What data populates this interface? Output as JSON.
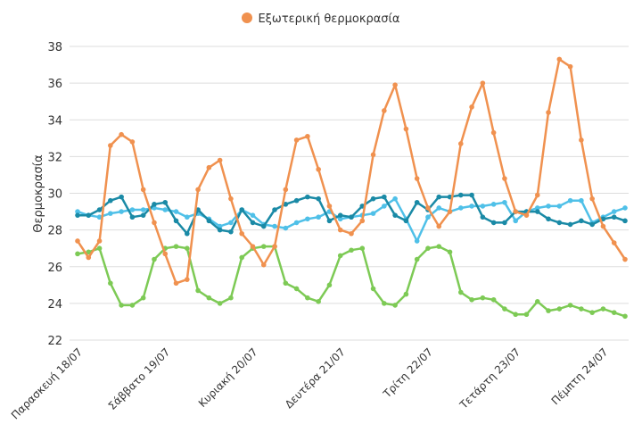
{
  "chart_data": {
    "type": "line",
    "title": "",
    "xlabel": "",
    "ylabel": "Θερμοκρασία",
    "ylim": [
      22,
      38
    ],
    "yticks": [
      22,
      24,
      26,
      28,
      30,
      32,
      34,
      36,
      38
    ],
    "grid": true,
    "legend_placement": "top-center",
    "x_tick_labels": [
      {
        "index": 0,
        "label": "Παρασκευή 18/07"
      },
      {
        "index": 8,
        "label": "Σάββατο 19/07"
      },
      {
        "index": 16,
        "label": "Κυριακή 20/07"
      },
      {
        "index": 24,
        "label": "Δευτέρα 21/07"
      },
      {
        "index": 32,
        "label": "Τρίτη 22/07"
      },
      {
        "index": 40,
        "label": "Τετάρτη 23/07"
      },
      {
        "index": 48,
        "label": "Πέμπτη 24/07"
      }
    ],
    "series": [
      {
        "name": "",
        "color": "#4fc0e8",
        "values": [
          29.0,
          28.8,
          28.7,
          28.9,
          29.0,
          29.1,
          29.1,
          29.2,
          29.1,
          29.0,
          28.7,
          28.9,
          28.6,
          28.2,
          28.4,
          29.1,
          28.8,
          28.3,
          28.2,
          28.1,
          28.4,
          28.6,
          28.7,
          29.0,
          28.6,
          28.7,
          28.8,
          28.9,
          29.3,
          29.7,
          28.6,
          27.4,
          28.7,
          29.2,
          29.0,
          29.2,
          29.3,
          29.3,
          29.4,
          29.5,
          28.5,
          29.0,
          29.2,
          29.3,
          29.3,
          29.6,
          29.6,
          28.4,
          28.7,
          29.0,
          29.2
        ]
      },
      {
        "name": "",
        "color": "#1a8aa6",
        "values": [
          28.8,
          28.8,
          29.1,
          29.6,
          29.8,
          28.7,
          28.8,
          29.4,
          29.5,
          28.5,
          27.8,
          29.1,
          28.5,
          28.0,
          27.9,
          29.1,
          28.4,
          28.2,
          29.1,
          29.4,
          29.6,
          29.8,
          29.7,
          28.5,
          28.8,
          28.7,
          29.3,
          29.7,
          29.8,
          28.8,
          28.5,
          29.5,
          29.1,
          29.8,
          29.8,
          29.9,
          29.9,
          28.7,
          28.4,
          28.4,
          29.0,
          29.0,
          29.0,
          28.6,
          28.4,
          28.3,
          28.5,
          28.3,
          28.6,
          28.7,
          28.5
        ]
      },
      {
        "name": "",
        "color": "#7dca55",
        "values": [
          26.7,
          26.8,
          27.0,
          25.1,
          23.9,
          23.9,
          24.3,
          26.4,
          27.0,
          27.1,
          27.0,
          24.7,
          24.3,
          24.0,
          24.3,
          26.5,
          27.0,
          27.1,
          27.1,
          25.1,
          24.8,
          24.3,
          24.1,
          25.0,
          26.6,
          26.9,
          27.0,
          24.8,
          24.0,
          23.9,
          24.5,
          26.4,
          27.0,
          27.1,
          26.8,
          24.6,
          24.2,
          24.3,
          24.2,
          23.7,
          23.4,
          23.4,
          24.1,
          23.6,
          23.7,
          23.9,
          23.7,
          23.5,
          23.7,
          23.5,
          23.3
        ]
      },
      {
        "name": "Εξωτερική θερμοκρασία",
        "color": "#f0914f",
        "values": [
          27.4,
          26.5,
          27.4,
          32.6,
          33.2,
          32.8,
          30.2,
          28.4,
          26.7,
          25.1,
          25.3,
          30.2,
          31.4,
          31.8,
          29.7,
          27.8,
          27.1,
          26.1,
          27.1,
          30.2,
          32.9,
          33.1,
          31.3,
          29.3,
          28.0,
          27.8,
          28.5,
          32.1,
          34.5,
          35.9,
          33.5,
          30.8,
          29.2,
          28.2,
          29.0,
          32.7,
          34.7,
          36.0,
          33.3,
          30.8,
          29.0,
          28.8,
          29.9,
          34.4,
          37.3,
          36.9,
          32.9,
          29.7,
          28.2,
          27.3,
          26.4
        ]
      }
    ]
  }
}
